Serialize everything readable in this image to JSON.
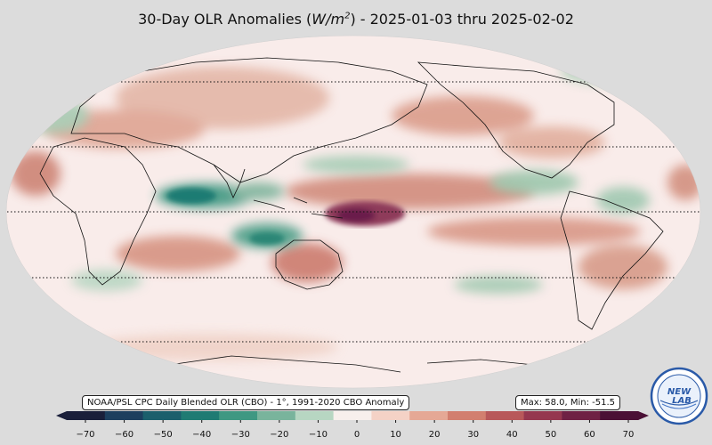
{
  "title": {
    "prefix": "30-Day OLR Anomalies (",
    "unit_base": "W/m",
    "unit_exp": "2",
    "suffix": ") - 2025-01-03 thru 2025-02-02"
  },
  "source_label": "NOAA/PSL CPC Daily Blended OLR (CBO) - 1°, 1991-2020 CBO Anomaly",
  "stats_label": "Max: 58.0,  Min: -51.5",
  "colorbar": {
    "ticks": [
      "−70",
      "−60",
      "−50",
      "−40",
      "−30",
      "−20",
      "−10",
      "0",
      "10",
      "20",
      "30",
      "40",
      "50",
      "60",
      "70"
    ],
    "colors": [
      "#1a1f3a",
      "#1d3f5e",
      "#1b5f6c",
      "#1f7b73",
      "#3f9882",
      "#79b49c",
      "#b7d6c2",
      "#f7efec",
      "#f4d2c6",
      "#e5a895",
      "#d27f6f",
      "#b8585a",
      "#95374f",
      "#6f2144",
      "#4a1035"
    ]
  },
  "logo": {
    "text_line1": "NEW",
    "text_line2": "LAB",
    "ring_text": "Physical Sciences Laboratory"
  },
  "map_colors": {
    "ocean_background": "#f9ecea",
    "positive": "#c9796c",
    "strong_positive": "#7a2354",
    "negative": "#6aa88f",
    "strong_negative": "#1d7467"
  }
}
